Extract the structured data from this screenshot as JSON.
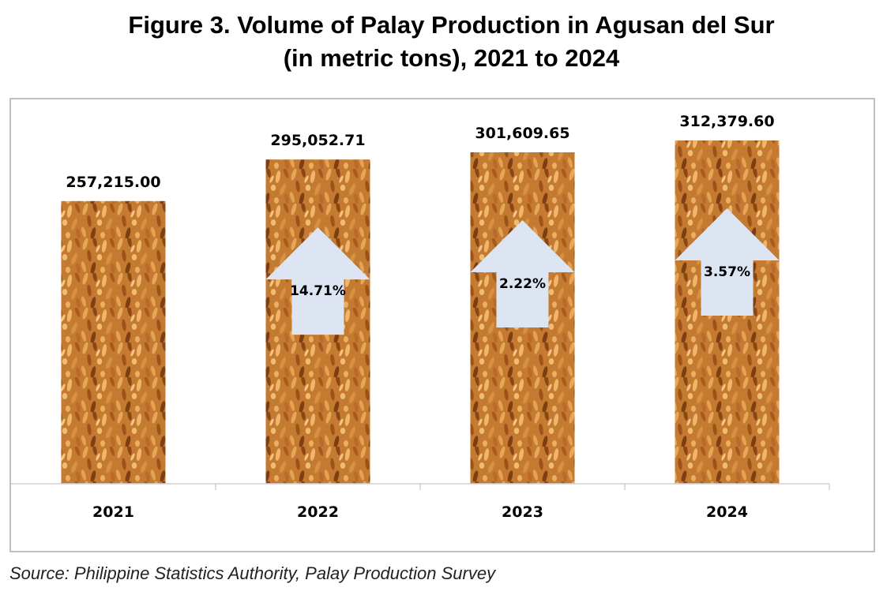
{
  "title_line1": "Figure 3. Volume of Palay Production in Agusan del Sur",
  "title_line2": "(in metric tons), 2021 to 2024",
  "source": "Source: Philippine Statistics Authority, Palay Production Survey",
  "colors": {
    "bar_base": "#c4782e",
    "grain_light": "#e9ad5c",
    "grain_dark": "#7a3f12",
    "arrow": "#dde5f2",
    "axis": "#d0d0d0"
  },
  "chart_data": {
    "type": "bar",
    "categories": [
      "2021",
      "2022",
      "2023",
      "2024"
    ],
    "values": [
      257215.0,
      295052.71,
      301609.65,
      312379.6
    ],
    "value_labels": [
      "257,215.00",
      "295,052.71",
      "301,609.65",
      "312,379.60"
    ],
    "growth_labels": [
      "",
      "14.71%",
      "2.22%",
      "3.57%"
    ],
    "grid": false,
    "legend": "none",
    "bar_fill": "rice-grain texture"
  }
}
